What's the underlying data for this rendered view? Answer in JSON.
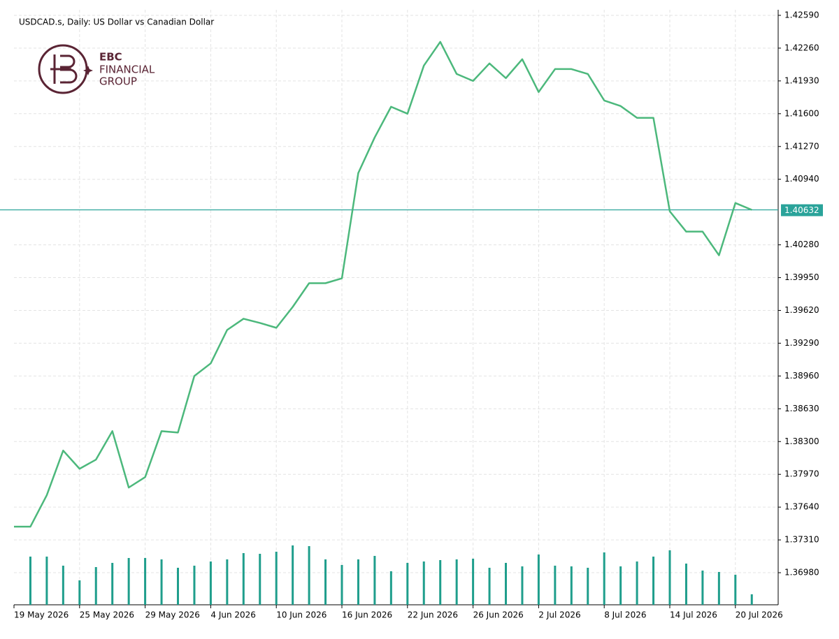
{
  "chart_data": {
    "type": "line",
    "title": "USDCAD.s, Daily:  US Dollar vs Canadian Dollar",
    "logo": {
      "line1": "EBC",
      "line2": "FINANCIAL",
      "line3": "GROUP"
    },
    "categories": [
      "19 May 2026",
      null,
      null,
      null,
      "25 May 2026",
      null,
      null,
      null,
      "29 May 2026",
      null,
      null,
      null,
      "4 Jun 2026",
      null,
      null,
      null,
      "10 Jun 2026",
      null,
      null,
      null,
      "16 Jun 2026",
      null,
      null,
      null,
      "22 Jun 2026",
      null,
      null,
      null,
      "26 Jun 2026",
      null,
      null,
      null,
      "2 Jul 2026",
      null,
      null,
      null,
      "8 Jul 2026",
      null,
      null,
      null,
      "14 Jul 2026",
      null,
      null,
      null,
      "20 Jul 2026",
      null
    ],
    "series": [
      {
        "color": "#4cb87c",
        "values": [
          1.37443,
          1.37443,
          1.3776,
          1.38209,
          1.38026,
          1.38118,
          1.38405,
          1.37837,
          1.37942,
          1.38405,
          1.38391,
          1.3896,
          1.39087,
          1.39423,
          1.39536,
          1.39494,
          1.39445,
          1.39655,
          1.39894,
          1.39894,
          1.39943,
          1.41003,
          1.41361,
          1.4167,
          1.416,
          1.42084,
          1.42323,
          1.42,
          1.4193,
          1.42106,
          1.41958,
          1.42148,
          1.41818,
          1.42049,
          1.42049,
          1.42,
          1.41733,
          1.41677,
          1.41558,
          1.41558,
          1.40617,
          1.40413,
          1.40413,
          1.40175,
          1.40701,
          1.40632
        ]
      }
    ],
    "volume": {
      "color": "#1f9e8c",
      "values": [
        null,
        69,
        69,
        56,
        35,
        54,
        60,
        67,
        67,
        65,
        53,
        56,
        62,
        65,
        74,
        73,
        76,
        85,
        84,
        65,
        57,
        65,
        70,
        48,
        60,
        62,
        64,
        65,
        66,
        53,
        60,
        55,
        72,
        56,
        55,
        53,
        75,
        55,
        62,
        69,
        78,
        59,
        49,
        47,
        43,
        15
      ]
    },
    "current_price": 1.40632,
    "current_price_color": "#2aa39a",
    "ylim": [
      1.36657,
      1.42646
    ],
    "yticks": [
      {
        "value": 1.3698,
        "label": "1.36980"
      },
      {
        "value": 1.3731,
        "label": "1.37310"
      },
      {
        "value": 1.3764,
        "label": "1.37640"
      },
      {
        "value": 1.3797,
        "label": "1.37970"
      },
      {
        "value": 1.383,
        "label": "1.38300"
      },
      {
        "value": 1.3863,
        "label": "1.38630"
      },
      {
        "value": 1.3896,
        "label": "1.38960"
      },
      {
        "value": 1.3929,
        "label": "1.39290"
      },
      {
        "value": 1.3962,
        "label": "1.39620"
      },
      {
        "value": 1.3995,
        "label": "1.39950"
      },
      {
        "value": 1.4028,
        "label": "1.40280"
      },
      {
        "value": 1.4094,
        "label": "1.40940"
      },
      {
        "value": 1.4127,
        "label": "1.41270"
      },
      {
        "value": 1.416,
        "label": "1.41600"
      },
      {
        "value": 1.4193,
        "label": "1.41930"
      },
      {
        "value": 1.4226,
        "label": "1.42260"
      },
      {
        "value": 1.4259,
        "label": "1.42590"
      }
    ],
    "grid": true
  }
}
